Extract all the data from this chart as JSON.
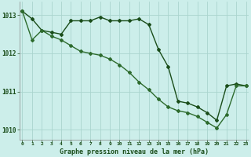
{
  "title": "Graphe pression niveau de la mer (hPa)",
  "bg_color": "#cceeea",
  "grid_color": "#aad4ce",
  "line_color_dark": "#1a4d1a",
  "line_color_mid": "#2d6b2d",
  "xlim": [
    0,
    23
  ],
  "ylim": [
    1009.75,
    1013.35
  ],
  "yticks": [
    1010,
    1011,
    1012,
    1013
  ],
  "xticks": [
    0,
    1,
    2,
    3,
    4,
    5,
    6,
    7,
    8,
    9,
    10,
    11,
    12,
    13,
    14,
    15,
    16,
    17,
    18,
    19,
    20,
    21,
    22,
    23
  ],
  "series1": [
    1013.1,
    1012.9,
    1012.6,
    1012.55,
    1012.5,
    1012.85,
    1012.85,
    1012.85,
    1012.95,
    1012.85,
    1012.85,
    1012.85,
    1012.9,
    1012.75,
    1012.1,
    1011.65,
    1010.75,
    1010.7,
    1010.6,
    1010.45,
    1010.25,
    1011.15,
    1011.2,
    1011.15
  ],
  "series2": [
    1013.1,
    1012.35,
    1012.6,
    1012.45,
    1012.35,
    1012.2,
    1012.05,
    1012.0,
    1011.95,
    1011.85,
    1011.7,
    1011.5,
    1011.25,
    1011.05,
    1010.8,
    1010.6,
    1010.5,
    1010.45,
    1010.35,
    1010.2,
    1010.05,
    1010.4,
    1011.15,
    1011.15
  ]
}
